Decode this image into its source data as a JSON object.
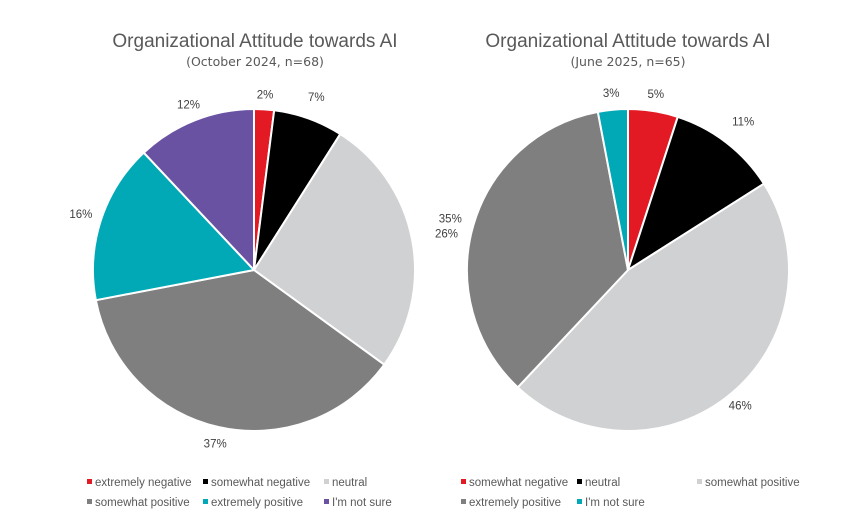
{
  "chart_data": [
    {
      "type": "pie",
      "title": "Organizational Attitude towards AI",
      "subtitle": "(October 2024, n=68)",
      "start_angle": "top, clockwise",
      "slices": [
        {
          "label": "extremely negative",
          "value": 2,
          "display": "2%",
          "color": "#e31a23"
        },
        {
          "label": "somewhat negative",
          "value": 7,
          "display": "7%",
          "color": "#000000"
        },
        {
          "label": "neutral",
          "value": 26,
          "display": "26%",
          "color": "#d0d1d3"
        },
        {
          "label": "somewhat positive",
          "value": 37,
          "display": "37%",
          "color": "#7f7f80"
        },
        {
          "label": "extremely positive",
          "value": 16,
          "display": "16%",
          "color": "#00a9b5"
        },
        {
          "label": "I'm not sure",
          "value": 12,
          "display": "12%",
          "color": "#6a52a3"
        }
      ],
      "legend": {
        "placement": "bottom",
        "rows": [
          [
            "extremely negative",
            "somewhat negative",
            "neutral"
          ],
          [
            "somewhat positive",
            "extremely positive",
            "I'm not sure"
          ]
        ]
      }
    },
    {
      "type": "pie",
      "title": "Organizational Attitude towards AI",
      "subtitle": "(June 2025, n=65)",
      "start_angle": "top, clockwise",
      "slices": [
        {
          "label": "somewhat negative",
          "value": 5,
          "display": "5%",
          "color": "#e31a23"
        },
        {
          "label": "neutral",
          "value": 11,
          "display": "11%",
          "color": "#000000"
        },
        {
          "label": "somewhat positive",
          "value": 46,
          "display": "46%",
          "color": "#d0d1d3"
        },
        {
          "label": "extremely positive",
          "value": 35,
          "display": "35%",
          "color": "#7f7f80"
        },
        {
          "label": "I'm not sure",
          "value": 3,
          "display": "3%",
          "color": "#00a9b5"
        }
      ],
      "legend": {
        "placement": "bottom",
        "rows": [
          [
            "somewhat negative",
            "neutral",
            "somewhat positive"
          ],
          [
            "extremely positive",
            "I'm not sure"
          ]
        ]
      }
    }
  ]
}
